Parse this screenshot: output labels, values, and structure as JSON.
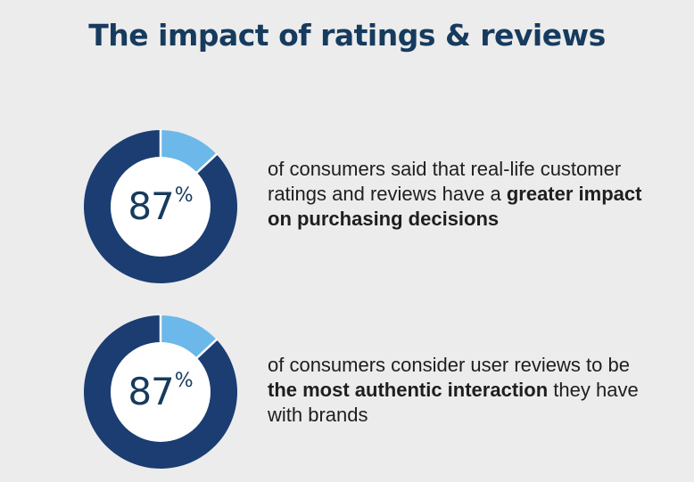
{
  "header": {
    "title": "The impact of ratings & reviews"
  },
  "colors": {
    "primary": "#1b3d72",
    "accent": "#6cb8ea",
    "title": "#163b5e",
    "background": "#ececec"
  },
  "stats": [
    {
      "value": "87",
      "unit": "%",
      "text_before": "of consumers said that real-life customer ratings and reviews have a",
      "text_bold": "greater impact on purchasing decisions",
      "text_after": ""
    },
    {
      "value": "87",
      "unit": "%",
      "text_before": "of consumers consider user reviews to be",
      "text_bold": "the most authentic interaction",
      "text_after": "they have with brands"
    }
  ],
  "chart_data": [
    {
      "type": "pie",
      "categories": [
        "87%",
        "13%"
      ],
      "values": [
        87,
        13
      ]
    },
    {
      "type": "pie",
      "categories": [
        "87%",
        "13%"
      ],
      "values": [
        87,
        13
      ]
    }
  ]
}
